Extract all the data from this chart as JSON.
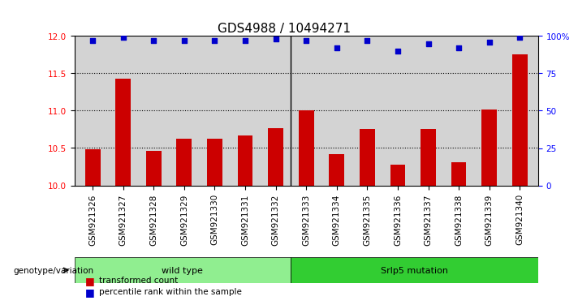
{
  "title": "GDS4988 / 10494271",
  "samples": [
    "GSM921326",
    "GSM921327",
    "GSM921328",
    "GSM921329",
    "GSM921330",
    "GSM921331",
    "GSM921332",
    "GSM921333",
    "GSM921334",
    "GSM921335",
    "GSM921336",
    "GSM921337",
    "GSM921338",
    "GSM921339",
    "GSM921340"
  ],
  "red_values": [
    10.48,
    11.43,
    10.46,
    10.62,
    10.62,
    10.67,
    10.77,
    11.01,
    10.42,
    10.75,
    10.28,
    10.75,
    10.31,
    11.02,
    11.75
  ],
  "blue_values": [
    97,
    99,
    97,
    97,
    97,
    97,
    98,
    97,
    92,
    97,
    90,
    95,
    92,
    96,
    99
  ],
  "ylim_left": [
    10.0,
    12.0
  ],
  "ylim_right": [
    0,
    100
  ],
  "yticks_left": [
    10.0,
    10.5,
    11.0,
    11.5,
    12.0
  ],
  "yticks_right": [
    0,
    25,
    50,
    75,
    100
  ],
  "ylabel_right_labels": [
    "0",
    "25",
    "50",
    "75",
    "100%"
  ],
  "bar_color": "#cc0000",
  "dot_color": "#0000cc",
  "wild_type_samples": 7,
  "group_labels": [
    "wild type",
    "Srlp5 mutation"
  ],
  "group_colors": [
    "#90EE90",
    "#32CD32"
  ],
  "legend_labels": [
    "transformed count",
    "percentile rank within the sample"
  ],
  "bg_color": "#d3d3d3",
  "plot_bg_color": "#ffffff",
  "dotted_line_color": "#000000",
  "title_fontsize": 11,
  "tick_fontsize": 7.5,
  "bar_width": 0.5
}
